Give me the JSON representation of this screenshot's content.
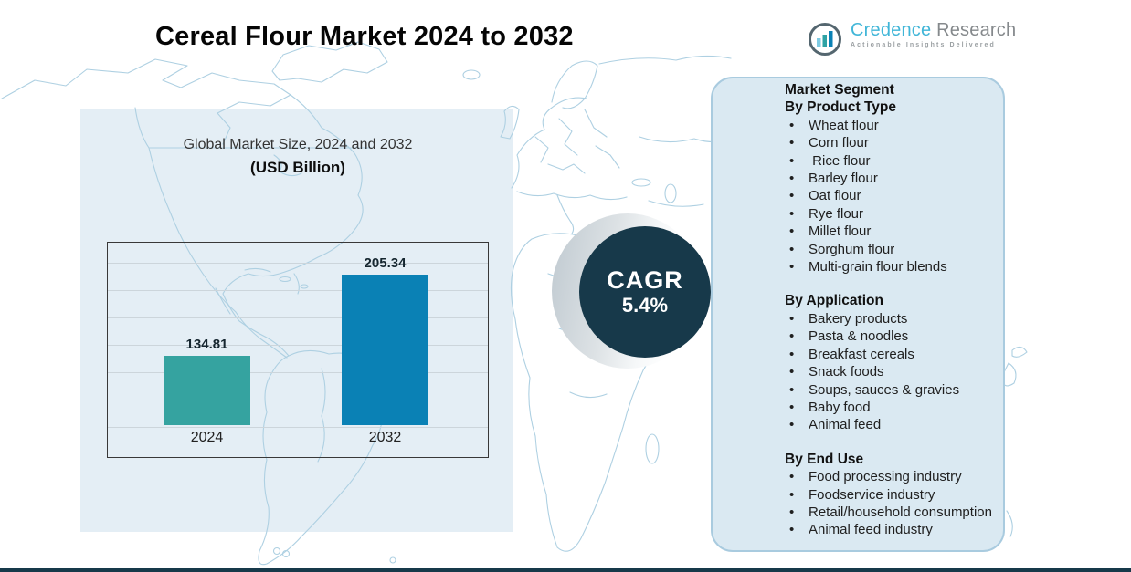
{
  "title": "Cereal Flour Market 2024 to 2032",
  "logo": {
    "brand_first": "Credence",
    "brand_second": "Research",
    "tagline": "Actionable Insights Delivered",
    "icon": "bar-chart-in-circle-icon"
  },
  "chart": {
    "subtitle_line1": "Global Market Size, 2024 and 2032",
    "subtitle_line2": "(USD Billion)"
  },
  "chart_data": {
    "type": "bar",
    "title": "Global Market Size, 2024 and 2032 (USD Billion)",
    "categories": [
      "2024",
      "2032"
    ],
    "values": [
      134.81,
      205.34
    ],
    "value_labels": [
      "134.81",
      "205.34"
    ],
    "bar_colors": [
      "#35a3a0",
      "#0a81b5"
    ],
    "ylim": [
      75,
      235
    ],
    "grid": "horizontal",
    "legend": "none"
  },
  "cagr": {
    "label": "CAGR",
    "value": "5.4%",
    "circle_color": "#17394a"
  },
  "segments": {
    "title": "Market Segment",
    "groups": [
      {
        "heading": "By Product Type",
        "items": [
          "Wheat flour",
          "Corn flour",
          " Rice flour",
          "Barley flour",
          "Oat flour",
          "Rye flour",
          "Millet flour",
          "Sorghum flour",
          "Multi-grain flour blends"
        ]
      },
      {
        "heading": "By Application",
        "items": [
          "Bakery products",
          "Pasta & noodles",
          "Breakfast cereals",
          "Snack foods",
          "Soups, sauces & gravies",
          "Baby food",
          "Animal feed"
        ]
      },
      {
        "heading": "By End Use",
        "items": [
          "Food processing industry",
          "Foodservice industry",
          "Retail/household consumption",
          "Animal feed industry"
        ]
      }
    ]
  },
  "colors": {
    "backdrop": "#e4eef5",
    "panel_bg": "#dae9f2",
    "panel_border": "#a9cbdf",
    "map_stroke": "#aed0e2",
    "bottom_bar": "#17394a",
    "logo_blue": "#41b6d8"
  }
}
